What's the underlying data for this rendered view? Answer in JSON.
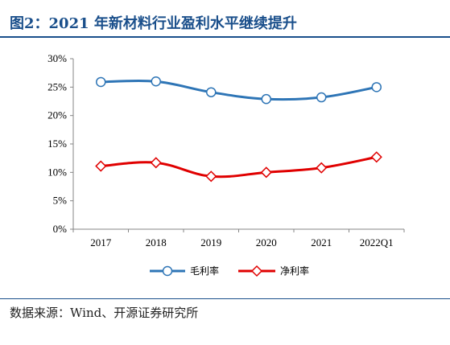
{
  "figure": {
    "title": "图2：2021 年新材料行业盈利水平继续提升",
    "source": "数据来源：Wind、开源证券研究所"
  },
  "chart_data": {
    "type": "line",
    "categories": [
      "2017",
      "2018",
      "2019",
      "2020",
      "2021",
      "2022Q1"
    ],
    "ylim": [
      0,
      30
    ],
    "ytick_labels": [
      "0%",
      "5%",
      "10%",
      "15%",
      "20%",
      "25%",
      "30%"
    ],
    "grid": false,
    "legend_position": "bottom",
    "series": [
      {
        "name": "毛利率",
        "values": [
          25.9,
          26.0,
          24.1,
          22.9,
          23.2,
          25.0
        ],
        "color": "#2e75b6",
        "marker": "circle"
      },
      {
        "name": "净利率",
        "values": [
          11.1,
          11.7,
          9.3,
          10.0,
          10.8,
          12.7
        ],
        "color": "#e00000",
        "marker": "diamond"
      }
    ]
  }
}
